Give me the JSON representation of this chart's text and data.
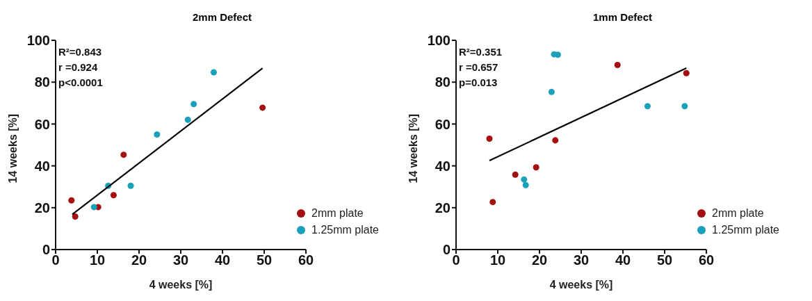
{
  "chart_data": [
    {
      "type": "scatter",
      "title": "2mm Defect",
      "xlabel": "4 weeks [%]",
      "ylabel": "14 weeks [%]",
      "xlim": [
        0,
        60
      ],
      "xticks": [
        0,
        10,
        20,
        30,
        40,
        50,
        60
      ],
      "ylim": [
        0,
        100
      ],
      "yticks": [
        0,
        20,
        40,
        60,
        80,
        100
      ],
      "grid": false,
      "legend": "bottom right",
      "annotations": [
        "R²=0.843",
        "r =0.924",
        "p<0.0001"
      ],
      "series": [
        {
          "name": "2mm plate",
          "color": "#a50f0f",
          "marker": "circle",
          "x": [
            3.8,
            4.7,
            10.2,
            13.9,
            16.3,
            49.6
          ],
          "values": [
            23.5,
            15.8,
            20.3,
            26,
            45.3,
            67.8
          ]
        },
        {
          "name": "1.25mm plate",
          "color": "#1aa0b8",
          "marker": "circle",
          "x": [
            9.2,
            12.6,
            18,
            24.3,
            31.7,
            33.1,
            37.9
          ],
          "values": [
            20.3,
            30.5,
            30.5,
            55,
            62,
            69.5,
            84.7
          ]
        },
        {
          "type": "line",
          "color": "#000000",
          "x": [
            4,
            49.6
          ],
          "values": [
            16.8,
            86.7
          ]
        }
      ]
    },
    {
      "type": "scatter",
      "title": "1mm Defect",
      "xlabel": "4 weeks [%]",
      "ylabel": "14 weeks [%]",
      "xlim": [
        0,
        60
      ],
      "xticks": [
        0,
        10,
        20,
        30,
        40,
        50,
        60
      ],
      "ylim": [
        0,
        100
      ],
      "yticks": [
        0,
        20,
        40,
        60,
        80,
        100
      ],
      "grid": false,
      "legend": "bottom right",
      "annotations": [
        "R²=0.351",
        "r =0.657",
        "p=0.013"
      ],
      "series": [
        {
          "name": "2mm plate",
          "color": "#a50f0f",
          "marker": "circle",
          "x": [
            8,
            8.8,
            14.2,
            19.2,
            23.8,
            38.7,
            55.2
          ],
          "values": [
            53,
            22.7,
            35.8,
            39.3,
            52.2,
            88.2,
            84.3
          ]
        },
        {
          "name": "1.25mm plate",
          "color": "#1aa0b8",
          "marker": "circle",
          "x": [
            16.3,
            16.7,
            22.9,
            23.5,
            24.4,
            45.9,
            54.8
          ],
          "values": [
            33.5,
            30.8,
            75.3,
            93.3,
            93.1,
            68.5,
            68.5
          ]
        },
        {
          "type": "line",
          "color": "#000000",
          "x": [
            8,
            55.2
          ],
          "values": [
            42.5,
            86.7
          ]
        }
      ]
    }
  ]
}
